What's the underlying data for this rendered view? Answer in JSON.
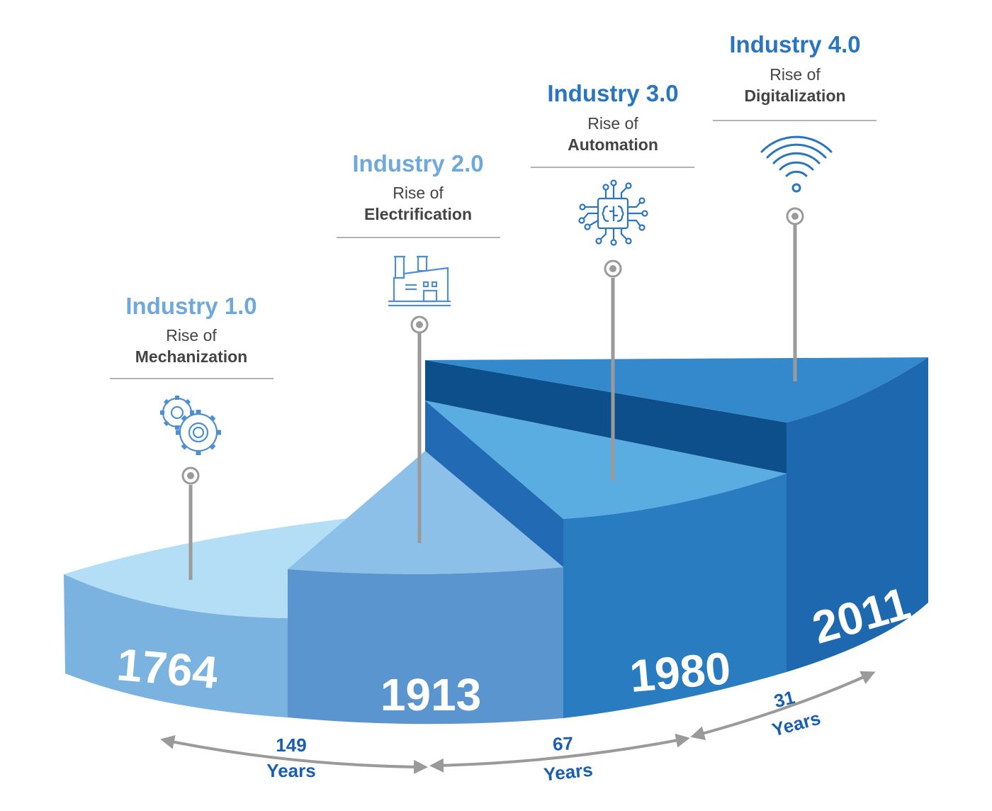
{
  "colors": {
    "accent_light": "#6fa8dc",
    "accent_mid": "#4f8fd0",
    "accent_dark": "#2a75c0",
    "span_text": "#1a5fae",
    "pin": "#9a9a9a",
    "subtitle_text": "#444444"
  },
  "stages": [
    {
      "title": "Industry 1.0",
      "rise": "Rise of",
      "focus": "Mechanization",
      "year": "1764",
      "icon": "gears-icon"
    },
    {
      "title": "Industry 2.0",
      "rise": "Rise of",
      "focus": "Electrification",
      "year": "1913",
      "icon": "factory-icon"
    },
    {
      "title": "Industry 3.0",
      "rise": "Rise of",
      "focus": "Automation",
      "year": "1980",
      "icon": "brain-chip-icon"
    },
    {
      "title": "Industry 4.0",
      "rise": "Rise of",
      "focus": "Digitalization",
      "year": "2011",
      "icon": "wifi-icon"
    }
  ],
  "spans": [
    {
      "number": "149",
      "unit": "Years"
    },
    {
      "number": "67",
      "unit": "Years"
    },
    {
      "number": "31",
      "unit": "Years"
    }
  ]
}
